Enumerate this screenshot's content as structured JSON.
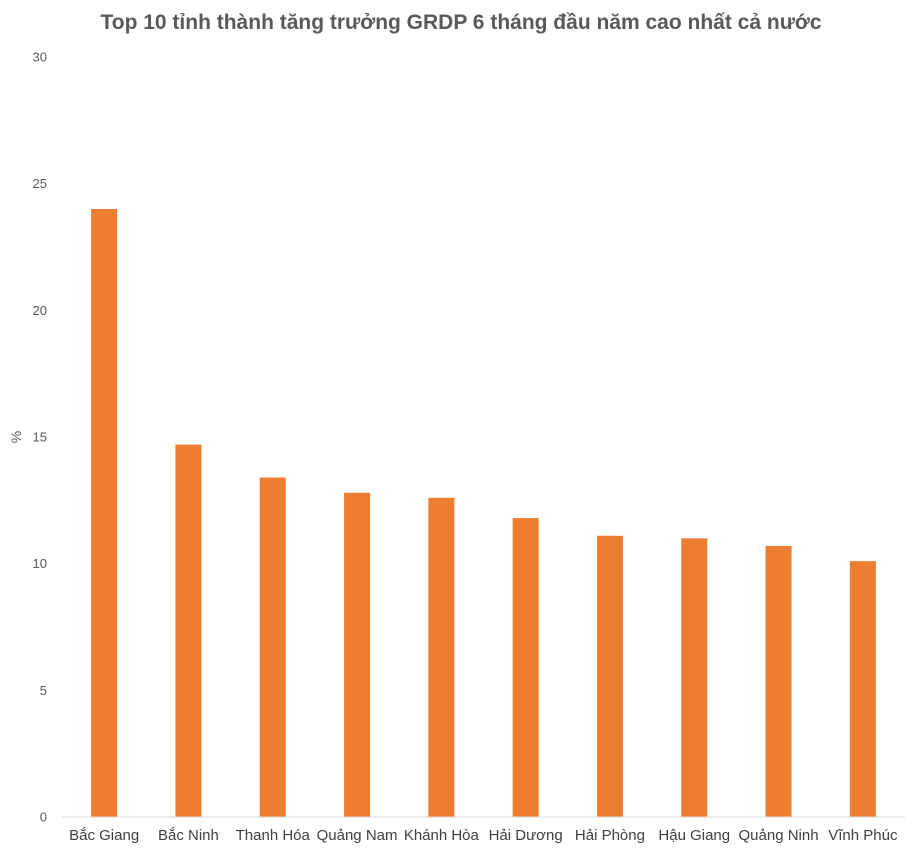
{
  "chart_data": {
    "type": "bar",
    "title": "Top 10 tỉnh thành tăng trưởng GRDP 6 tháng đầu năm cao nhất cả nước",
    "xlabel": "",
    "ylabel": "%",
    "categories": [
      "Bắc Giang",
      "Bắc Ninh",
      "Thanh Hóa",
      "Quảng Nam",
      "Khánh Hòa",
      "Hải Dương",
      "Hải Phòng",
      "Hậu Giang",
      "Quảng Ninh",
      "Vĩnh Phúc"
    ],
    "values": [
      24.0,
      14.7,
      13.4,
      12.8,
      12.6,
      11.8,
      11.1,
      11.0,
      10.7,
      10.1
    ],
    "ylim": [
      0,
      30
    ],
    "yticks": [
      "0",
      "5",
      "10",
      "15",
      "20",
      "25",
      "30"
    ],
    "grid": false,
    "bar_color": "#ED7D31"
  }
}
